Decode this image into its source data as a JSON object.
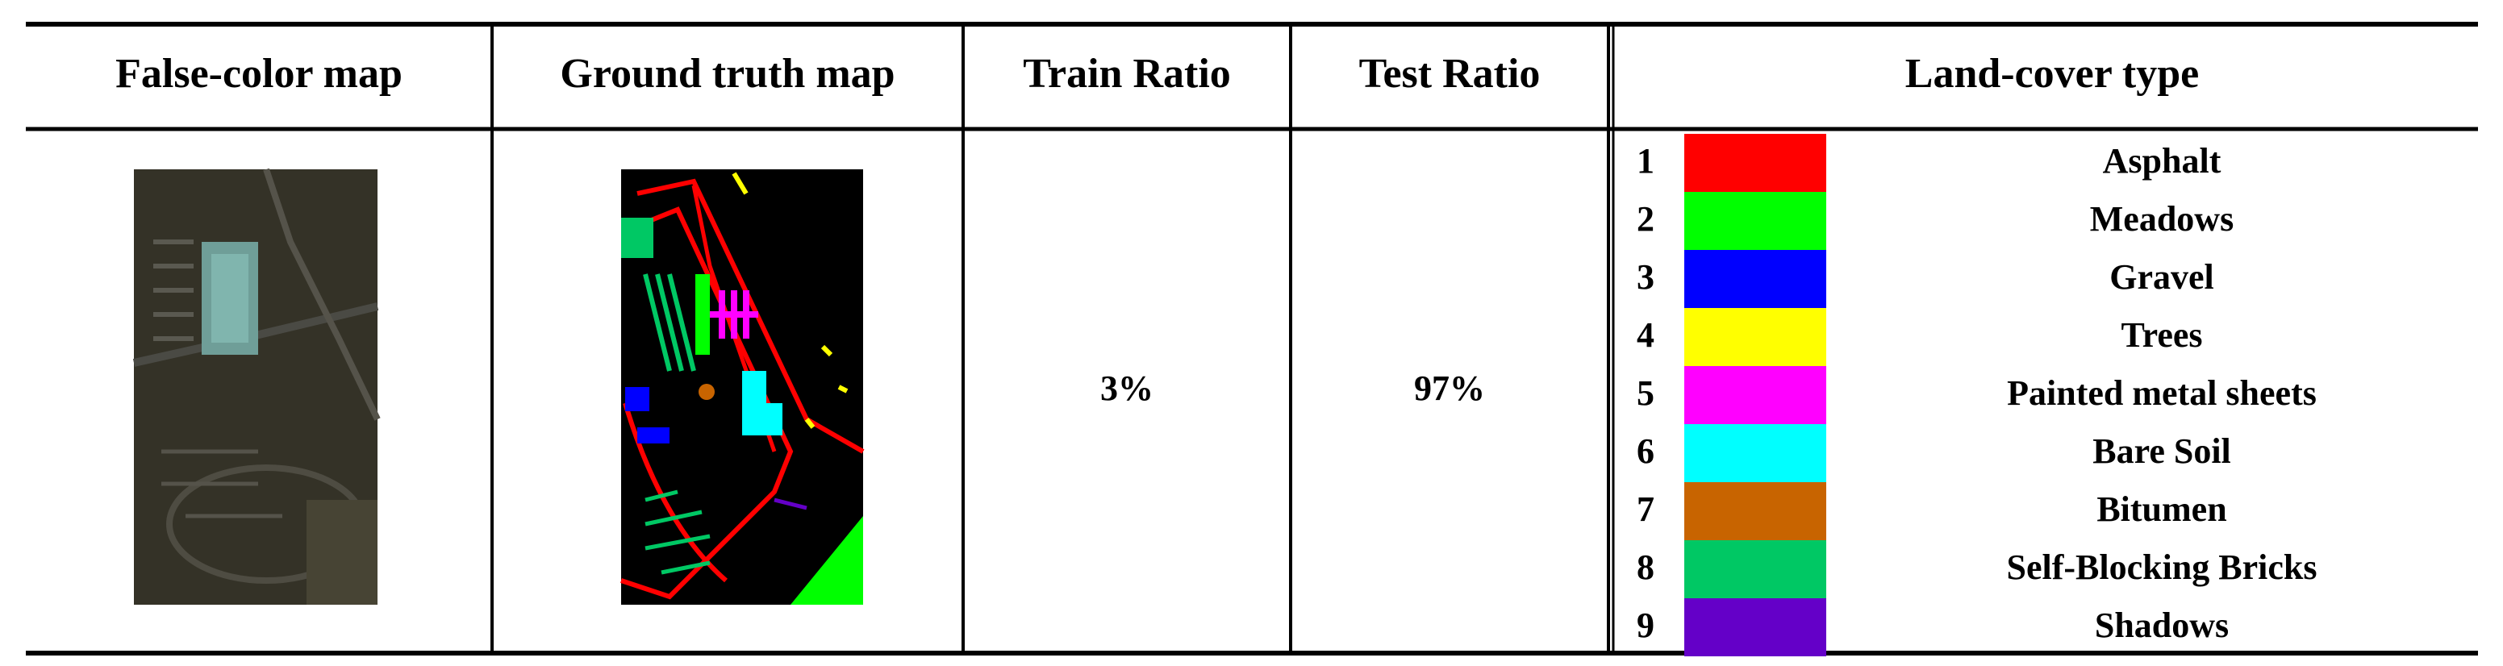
{
  "table": {
    "headers": [
      "False-color map",
      "Ground truth map",
      "Train Ratio",
      "Test Ratio",
      "Land-cover type"
    ],
    "train_ratio": "3%",
    "test_ratio": "97%",
    "classes": [
      {
        "number": "1",
        "name": "Asphalt",
        "color": "#ff0000"
      },
      {
        "number": "2",
        "name": "Meadows",
        "color": "#00ff00"
      },
      {
        "number": "3",
        "name": "Gravel",
        "color": "#0000ff"
      },
      {
        "number": "4",
        "name": "Trees",
        "color": "#ffff00"
      },
      {
        "number": "5",
        "name": "Painted metal sheets",
        "color": "#ff00ff"
      },
      {
        "number": "6",
        "name": "Bare Soil",
        "color": "#00ffff"
      },
      {
        "number": "7",
        "name": "Bitumen",
        "color": "#c86400"
      },
      {
        "number": "8",
        "name": "Self-Blocking Bricks",
        "color": "#00c864"
      },
      {
        "number": "9",
        "name": "Shadows",
        "color": "#6400c8"
      }
    ]
  }
}
